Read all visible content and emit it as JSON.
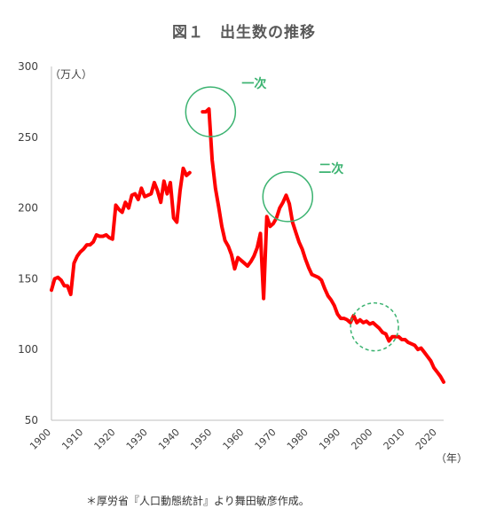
{
  "chart_data": {
    "type": "line",
    "title": "図１　出生数の推移",
    "ylabel": "（万人）",
    "xlabel": "（年）",
    "xlim": [
      1900,
      2022
    ],
    "ylim": [
      50,
      300
    ],
    "yticks": [
      50,
      100,
      150,
      200,
      250,
      300
    ],
    "xticks": [
      1900,
      1910,
      1920,
      1930,
      1940,
      1950,
      1960,
      1970,
      1980,
      1990,
      2000,
      2010,
      2020
    ],
    "grid": false,
    "series": [
      {
        "color": "#ff0000",
        "segments": [
          [
            [
              1900,
              142
            ],
            [
              1901,
              150
            ],
            [
              1902,
              151
            ],
            [
              1903,
              149
            ],
            [
              1904,
              145
            ],
            [
              1905,
              145
            ],
            [
              1906,
              139
            ],
            [
              1907,
              161
            ],
            [
              1908,
              166
            ],
            [
              1909,
              169
            ],
            [
              1910,
              171
            ],
            [
              1911,
              174
            ],
            [
              1912,
              174
            ],
            [
              1913,
              176
            ],
            [
              1914,
              181
            ],
            [
              1915,
              180
            ],
            [
              1916,
              180
            ],
            [
              1917,
              181
            ],
            [
              1918,
              179
            ],
            [
              1919,
              178
            ],
            [
              1920,
              202
            ],
            [
              1921,
              199
            ],
            [
              1922,
              197
            ],
            [
              1923,
              204
            ],
            [
              1924,
              200
            ],
            [
              1925,
              209
            ],
            [
              1926,
              210
            ],
            [
              1927,
              206
            ],
            [
              1928,
              214
            ],
            [
              1929,
              208
            ],
            [
              1930,
              209
            ],
            [
              1931,
              210
            ],
            [
              1932,
              218
            ],
            [
              1933,
              212
            ],
            [
              1934,
              204
            ],
            [
              1935,
              219
            ],
            [
              1936,
              210
            ],
            [
              1937,
              218
            ],
            [
              1938,
              193
            ],
            [
              1939,
              190
            ],
            [
              1940,
              212
            ],
            [
              1941,
              228
            ],
            [
              1942,
              223
            ],
            [
              1943,
              225
            ]
          ],
          [
            [
              1947,
              268
            ],
            [
              1948,
              268
            ],
            [
              1949,
              270
            ],
            [
              1950,
              234
            ],
            [
              1951,
              214
            ],
            [
              1952,
              201
            ],
            [
              1953,
              187
            ],
            [
              1954,
              177
            ],
            [
              1955,
              173
            ],
            [
              1956,
              167
            ],
            [
              1957,
              157
            ],
            [
              1958,
              165
            ],
            [
              1959,
              163
            ],
            [
              1960,
              161
            ],
            [
              1961,
              159
            ],
            [
              1962,
              162
            ],
            [
              1963,
              166
            ],
            [
              1964,
              172
            ],
            [
              1965,
              182
            ],
            [
              1966,
              136
            ],
            [
              1967,
              194
            ],
            [
              1968,
              187
            ],
            [
              1969,
              189
            ],
            [
              1970,
              193
            ],
            [
              1971,
              200
            ],
            [
              1972,
              204
            ],
            [
              1973,
              209
            ],
            [
              1974,
              203
            ],
            [
              1975,
              190
            ],
            [
              1976,
              183
            ],
            [
              1977,
              176
            ],
            [
              1978,
              171
            ],
            [
              1979,
              164
            ],
            [
              1980,
              158
            ],
            [
              1981,
              153
            ],
            [
              1982,
              152
            ],
            [
              1983,
              151
            ],
            [
              1984,
              149
            ],
            [
              1985,
              143
            ],
            [
              1986,
              138
            ],
            [
              1987,
              135
            ],
            [
              1988,
              131
            ],
            [
              1989,
              125
            ],
            [
              1990,
              122
            ],
            [
              1991,
              122
            ],
            [
              1992,
              121
            ],
            [
              1993,
              119
            ],
            [
              1994,
              124
            ],
            [
              1995,
              119
            ],
            [
              1996,
              121
            ],
            [
              1997,
              119
            ],
            [
              1998,
              120
            ],
            [
              1999,
              118
            ],
            [
              2000,
              119
            ],
            [
              2001,
              117
            ],
            [
              2002,
              115
            ],
            [
              2003,
              112
            ],
            [
              2004,
              111
            ],
            [
              2005,
              106
            ],
            [
              2006,
              109
            ],
            [
              2007,
              109
            ],
            [
              2008,
              109
            ],
            [
              2009,
              107
            ],
            [
              2010,
              107
            ],
            [
              2011,
              105
            ],
            [
              2012,
              104
            ],
            [
              2013,
              103
            ],
            [
              2014,
              100
            ],
            [
              2015,
              101
            ],
            [
              2016,
              98
            ],
            [
              2017,
              95
            ],
            [
              2018,
              92
            ],
            [
              2019,
              87
            ],
            [
              2020,
              84
            ],
            [
              2021,
              81
            ],
            [
              2022,
              77
            ]
          ]
        ]
      }
    ],
    "highlights": [
      {
        "label": "一次",
        "x": 1949.5,
        "y": 268,
        "style": "solid"
      },
      {
        "label": "二次",
        "x": 1973.5,
        "y": 208,
        "style": "solid"
      },
      {
        "label": "",
        "x": 2000.5,
        "y": 116,
        "style": "dashed"
      }
    ],
    "highlight_color": "#3cb371"
  },
  "footnote": "＊厚労省『人口動態統計』より舞田敏彦作成。"
}
